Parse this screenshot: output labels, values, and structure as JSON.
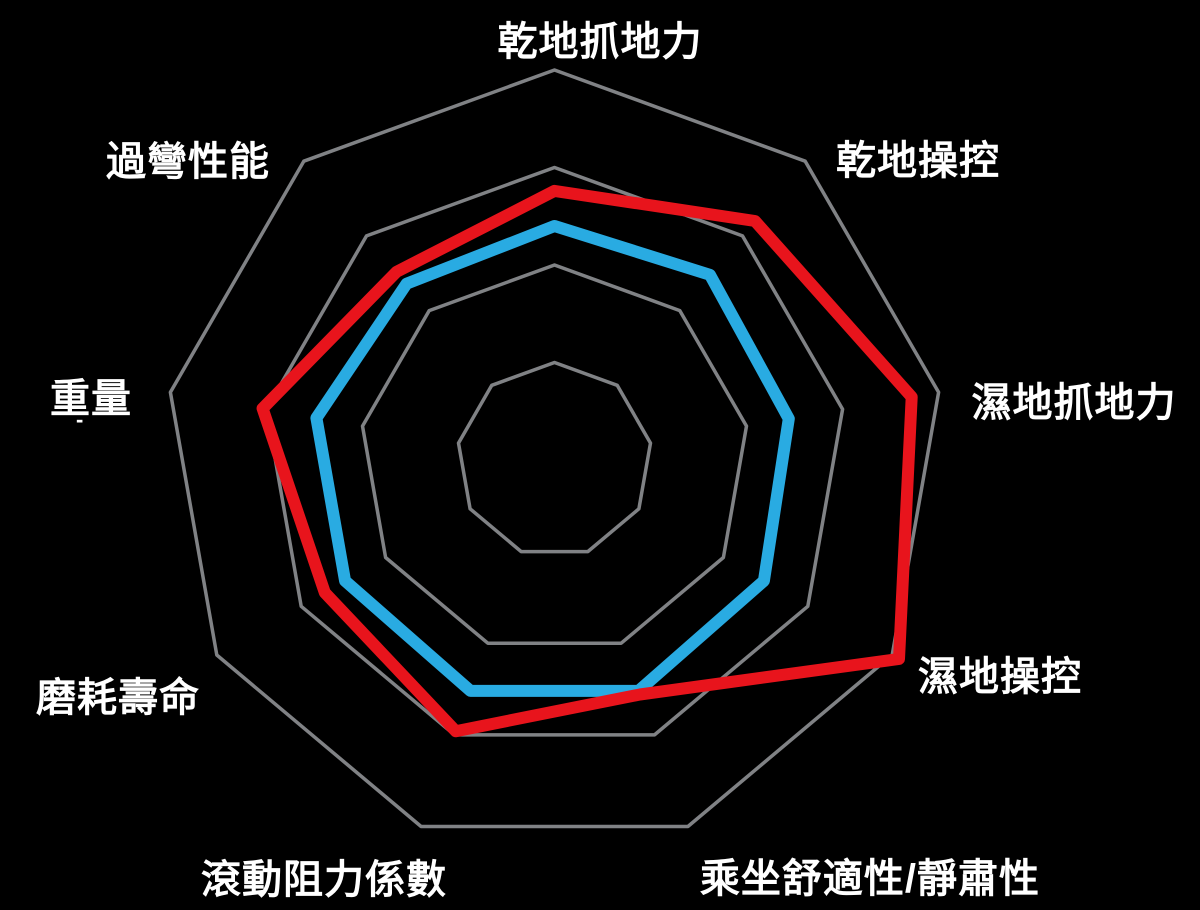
{
  "page": {
    "background_color": "#000000",
    "text_color": "#ffffff"
  },
  "annotations": {
    "weight_tick": "-"
  },
  "chart_data": {
    "type": "radar",
    "categories": [
      "乾地抓地力",
      "乾地操控",
      "濕地抓地力",
      "濕地操控",
      "乘坐舒適性/靜肅性",
      "滾動阻力係數",
      "磨耗壽命",
      "重量",
      "過彎性能"
    ],
    "axis_count": 9,
    "max": 10,
    "grid_levels": [
      2.5,
      5,
      7.5,
      10
    ],
    "grid_color": "#808285",
    "grid_on": true,
    "legend_position": "none",
    "series": [
      {
        "color": "#29abe2",
        "values": [
          6.0,
          6.2,
          6.1,
          6.2,
          6.3,
          6.3,
          6.2,
          6.2,
          5.9
        ]
      },
      {
        "color": "#e8141c",
        "values": [
          6.9,
          8.0,
          9.3,
          10.2,
          6.4,
          7.4,
          6.8,
          7.6,
          6.3
        ]
      }
    ]
  }
}
